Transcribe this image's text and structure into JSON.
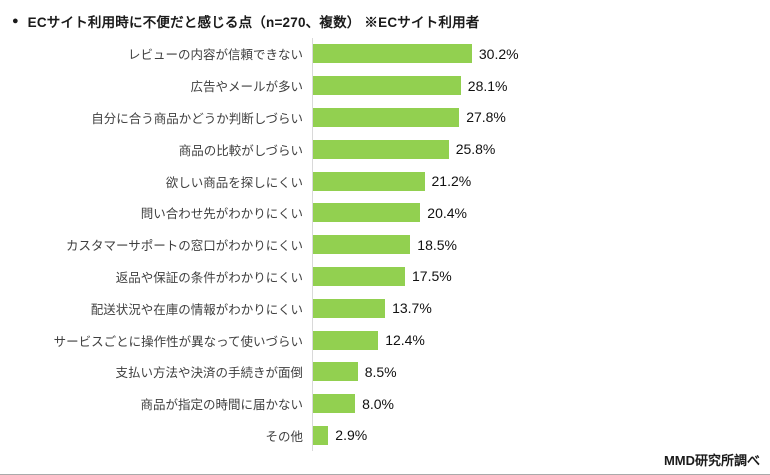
{
  "title": "ECサイト利用時に不便だと感じる点（n=270、複数） ※ECサイト利用者",
  "source": "MMD研究所調べ",
  "chart_data": {
    "type": "bar",
    "orientation": "horizontal",
    "title": "ECサイト利用時に不便だと感じる点（n=270、複数） ※ECサイト利用者",
    "sample_size": "n=270",
    "categories": [
      "レビューの内容が信頼できない",
      "広告やメールが多い",
      "自分に合う商品かどうか判断しづらい",
      "商品の比較がしづらい",
      "欲しい商品を探しにくい",
      "問い合わせ先がわかりにくい",
      "カスタマーサポートの窓口がわかりにくい",
      "返品や保証の条件がわかりにくい",
      "配送状況や在庫の情報がわかりにくい",
      "サービスごとに操作性が異なって使いづらい",
      "支払い方法や決済の手続きが面倒",
      "商品が指定の時間に届かない",
      "その他"
    ],
    "values": [
      30.2,
      28.1,
      27.8,
      25.8,
      21.2,
      20.4,
      18.5,
      17.5,
      13.7,
      12.4,
      8.5,
      8.0,
      2.9
    ],
    "value_labels": [
      "30.2%",
      "28.1%",
      "27.8%",
      "25.8%",
      "21.2%",
      "20.4%",
      "18.5%",
      "17.5%",
      "13.7%",
      "12.4%",
      "8.5%",
      "8.0%",
      "2.9%"
    ],
    "unit": "%",
    "xlim": [
      0,
      32
    ],
    "bar_color": "#92D050",
    "axis_line_color": "#D9D9D9",
    "grid": false,
    "legend": false,
    "source": "MMD研究所調べ"
  }
}
